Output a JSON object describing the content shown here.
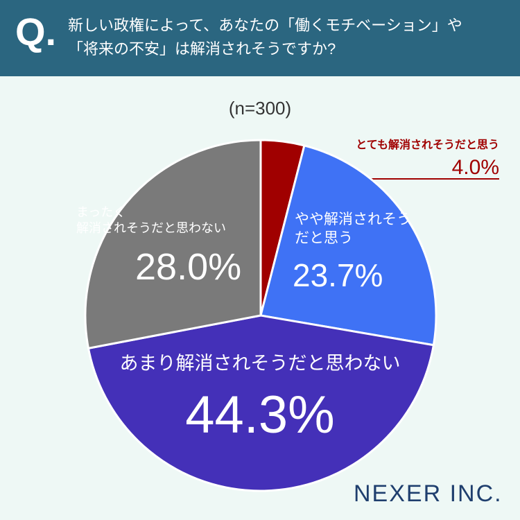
{
  "chart_data": {
    "type": "pie",
    "title_mark": "Q.",
    "title": "新しい政権によって、あなたの「働くモチベーション」や\n「将来の不安」は解消されそうですか?",
    "subtitle": "(n=300)",
    "categories": [
      "とても解消されそうだと思う",
      "やや解消されそう\nだと思う",
      "あまり解消されそうだと思わない",
      "まったく\n解消されそうだと思わない"
    ],
    "values": [
      4.0,
      23.7,
      44.3,
      28.0
    ],
    "value_labels": [
      "4.0%",
      "23.7%",
      "44.3%",
      "28.0%"
    ],
    "colors": [
      "#a00000",
      "#3f72f5",
      "#4430b8",
      "#7a7a7a"
    ],
    "logo": "NEXER INC."
  }
}
